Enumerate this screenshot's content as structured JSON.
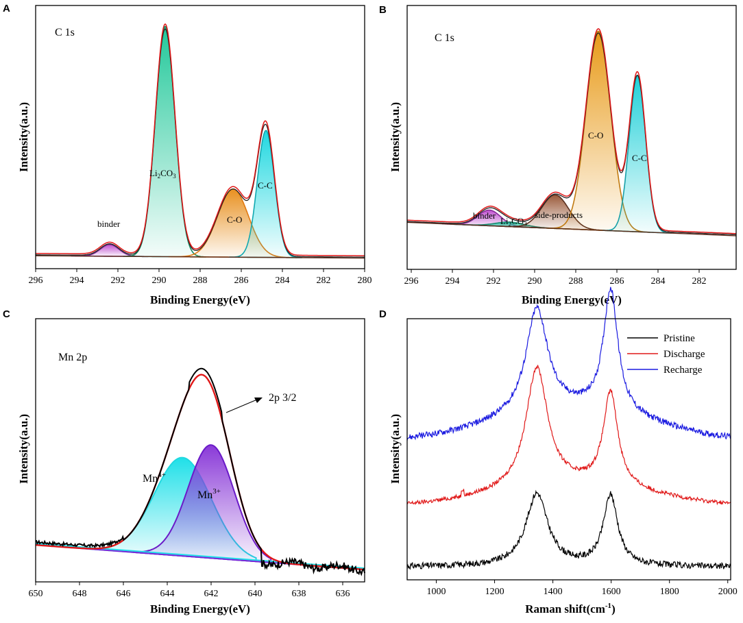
{
  "chart_data": [
    {
      "panel": "A",
      "type": "area",
      "title": "C 1s",
      "xlabel": "Binding Energy(eV)",
      "ylabel": "Intensity(a.u.)",
      "xlim": [
        296,
        280
      ],
      "ylim": [
        -0.05,
        1.07
      ],
      "xticks": [
        296,
        294,
        292,
        290,
        288,
        286,
        284,
        282,
        280
      ],
      "baseline": [
        [
          296,
          0.005
        ],
        [
          280,
          -0.005
        ]
      ],
      "peaks": [
        {
          "name": "binder",
          "center": 292.4,
          "height": 0.05,
          "width": 0.45,
          "color": "#c050d0",
          "edge": "#7a2a90"
        },
        {
          "name": "Li2CO3",
          "center": 289.7,
          "height": 0.98,
          "width": 0.48,
          "color": "#22c89a",
          "edge": "#1a8a60"
        },
        {
          "name": "C-O",
          "center": 286.4,
          "height": 0.29,
          "width": 0.75,
          "color": "#e89020",
          "edge": "#e07810"
        },
        {
          "name": "C-C",
          "center": 284.8,
          "height": 0.54,
          "width": 0.42,
          "color": "#20d8e0",
          "edge": "#10a8b0"
        }
      ],
      "labels": {
        "binder": "binder",
        "li2co3_main": "Li",
        "li2co3_sub1": "2",
        "li2co3_mid": "CO",
        "li2co3_sub2": "3",
        "co": "C-O",
        "cc": "C-C"
      }
    },
    {
      "panel": "B",
      "type": "area",
      "title": "C 1s",
      "xlabel": "Binding Energy(eV)",
      "ylabel": "Intensity(a.u.)",
      "xlim": [
        296.2,
        280.2
      ],
      "ylim": [
        -0.2,
        0.98
      ],
      "xticks": [
        296,
        294,
        292,
        290,
        288,
        286,
        284,
        282
      ],
      "baseline": [
        [
          296.2,
          0.01
        ],
        [
          280.2,
          -0.05
        ]
      ],
      "peaks": [
        {
          "name": "binder",
          "center": 292.2,
          "height": 0.07,
          "width": 0.55,
          "color": "#c050d0",
          "edge": "#8a2a9a"
        },
        {
          "name": "Li2CO3",
          "center": 291.2,
          "height": 0.02,
          "width": 0.7,
          "color": "#20c8a0",
          "edge": "#168a70"
        },
        {
          "name": "side-products",
          "center": 289.0,
          "height": 0.15,
          "width": 0.65,
          "color": "#9a5a3a",
          "edge": "#5a3020"
        },
        {
          "name": "C-O",
          "center": 286.9,
          "height": 0.89,
          "width": 0.6,
          "color": "#e89a18",
          "edge": "#c07a10"
        },
        {
          "name": "C-C",
          "center": 285.0,
          "height": 0.7,
          "width": 0.4,
          "color": "#20d0d8",
          "edge": "#18a0a8"
        }
      ],
      "labels": {
        "binder": "binder",
        "li2co3_main": "Li",
        "li2co3_sub1": "2",
        "li2co3_mid": "CO",
        "li2co3_sub2": "3",
        "side": "side-products",
        "co": "C-O",
        "cc": "C-C"
      }
    },
    {
      "panel": "C",
      "type": "area",
      "title": "Mn 2p",
      "xlabel": "Binding Energy(eV)",
      "ylabel": "Intensity(a.u.)",
      "xlim": [
        650,
        635
      ],
      "ylim": [
        -0.15,
        0.92
      ],
      "xticks": [
        650,
        648,
        646,
        644,
        642,
        640,
        638,
        636
      ],
      "baseline": [
        [
          650,
          0.0
        ],
        [
          635,
          -0.1
        ]
      ],
      "peaks": [
        {
          "name": "Mn4+",
          "center": 643.3,
          "height": 0.4,
          "width": 1.3,
          "color": "#20e0e8",
          "edge": "#20d8e0"
        },
        {
          "name": "Mn3+",
          "center": 642.0,
          "height": 0.46,
          "width": 1.05,
          "color": "#8a3ad8",
          "edge": "#6a1ac8"
        }
      ],
      "envelope_color": "#e01818",
      "raw_color": "#000000",
      "annotation": "2p 3/2",
      "labels": {
        "mn4": "Mn",
        "mn4_sup": "4+",
        "mn3": "Mn",
        "mn3_sup": "3+"
      }
    },
    {
      "panel": "D",
      "type": "line",
      "xlabel_main": "Raman shift(cm",
      "xlabel_sup": "-1",
      "xlabel_end": ")",
      "ylabel": "Intensity(a.u.)",
      "xlim": [
        900,
        2010
      ],
      "ylim": [
        0,
        1
      ],
      "xticks": [
        1000,
        1200,
        1400,
        1600,
        1800,
        2000
      ],
      "series": [
        {
          "name": "Pristine",
          "color": "#000000",
          "offset": 0.05,
          "D": 0.28,
          "G": 0.27,
          "slope": 0.0,
          "noise": 0.012
        },
        {
          "name": "Discharge",
          "color": "#e01818",
          "offset": 0.28,
          "D": 0.46,
          "G": 0.36,
          "slope": 0.08,
          "noise": 0.008
        },
        {
          "name": "Recharge",
          "color": "#1a1ae0",
          "offset": 0.53,
          "D": 0.4,
          "G": 0.47,
          "slope": 0.12,
          "noise": 0.012
        }
      ]
    }
  ]
}
